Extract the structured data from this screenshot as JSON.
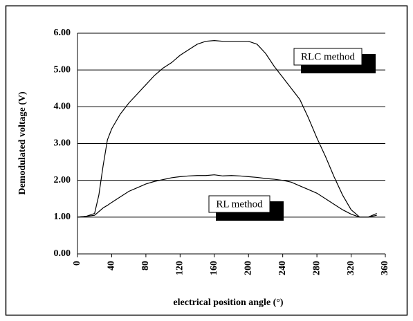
{
  "chart_data": {
    "type": "line",
    "y_label": "Demodulated voltage (V)",
    "x_label": "electrical position angle (°)",
    "x": [
      0,
      10,
      20,
      25,
      30,
      35,
      40,
      50,
      60,
      70,
      80,
      90,
      100,
      110,
      120,
      130,
      140,
      150,
      160,
      170,
      180,
      190,
      200,
      210,
      220,
      230,
      240,
      250,
      260,
      270,
      280,
      290,
      300,
      310,
      320,
      330,
      340,
      350
    ],
    "series": [
      {
        "name": "RLC method",
        "color": "#000000",
        "values": [
          1.0,
          1.02,
          1.1,
          1.6,
          2.4,
          3.1,
          3.4,
          3.8,
          4.1,
          4.35,
          4.6,
          4.85,
          5.05,
          5.2,
          5.4,
          5.55,
          5.7,
          5.78,
          5.8,
          5.78,
          5.78,
          5.78,
          5.78,
          5.7,
          5.45,
          5.1,
          4.8,
          4.5,
          4.2,
          3.7,
          3.15,
          2.65,
          2.1,
          1.6,
          1.2,
          1.0,
          1.0,
          1.1
        ]
      },
      {
        "name": "RL method",
        "color": "#000000",
        "values": [
          1.0,
          1.02,
          1.05,
          1.15,
          1.25,
          1.32,
          1.4,
          1.55,
          1.7,
          1.8,
          1.9,
          1.97,
          2.02,
          2.07,
          2.1,
          2.12,
          2.13,
          2.13,
          2.15,
          2.12,
          2.13,
          2.12,
          2.1,
          2.08,
          2.05,
          2.03,
          2.0,
          1.95,
          1.85,
          1.75,
          1.65,
          1.5,
          1.35,
          1.2,
          1.08,
          1.0,
          1.0,
          1.05
        ]
      }
    ],
    "xlim": [
      0,
      360
    ],
    "xticks": [
      0,
      40,
      80,
      120,
      160,
      200,
      240,
      280,
      320,
      360
    ],
    "ylim": [
      0,
      6
    ],
    "yticks": [
      {
        "value": 0,
        "label": "0.00"
      },
      {
        "value": 1,
        "label": "1.00"
      },
      {
        "value": 2,
        "label": "2.00"
      },
      {
        "value": 3,
        "label": "3.00"
      },
      {
        "value": 4,
        "label": "4.00"
      },
      {
        "value": 5,
        "label": "5.00"
      },
      {
        "value": 6,
        "label": "6.00"
      }
    ],
    "grid": true
  }
}
